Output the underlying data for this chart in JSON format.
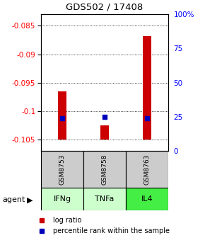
{
  "title": "GDS502 / 17408",
  "samples": [
    "GSM8753",
    "GSM8758",
    "GSM8763"
  ],
  "agents": [
    "IFNg",
    "TNFa",
    "IL4"
  ],
  "log_ratios": [
    -0.0965,
    -0.1025,
    -0.0868
  ],
  "percentile_ranks_pct": [
    24,
    25,
    24
  ],
  "ylim_left": [
    -0.107,
    -0.083
  ],
  "ylim_right": [
    0,
    100
  ],
  "left_ticks": [
    -0.105,
    -0.1,
    -0.095,
    -0.09,
    -0.085
  ],
  "right_ticks": [
    0,
    25,
    50,
    75,
    100
  ],
  "bar_color": "#cc0000",
  "rank_color": "#0000bb",
  "agent_colors": [
    "#ccffcc",
    "#ccffcc",
    "#44ee44"
  ],
  "sample_bg": "#cccccc",
  "grid_color": "#999999",
  "bar_width": 0.2,
  "baseline": -0.105
}
